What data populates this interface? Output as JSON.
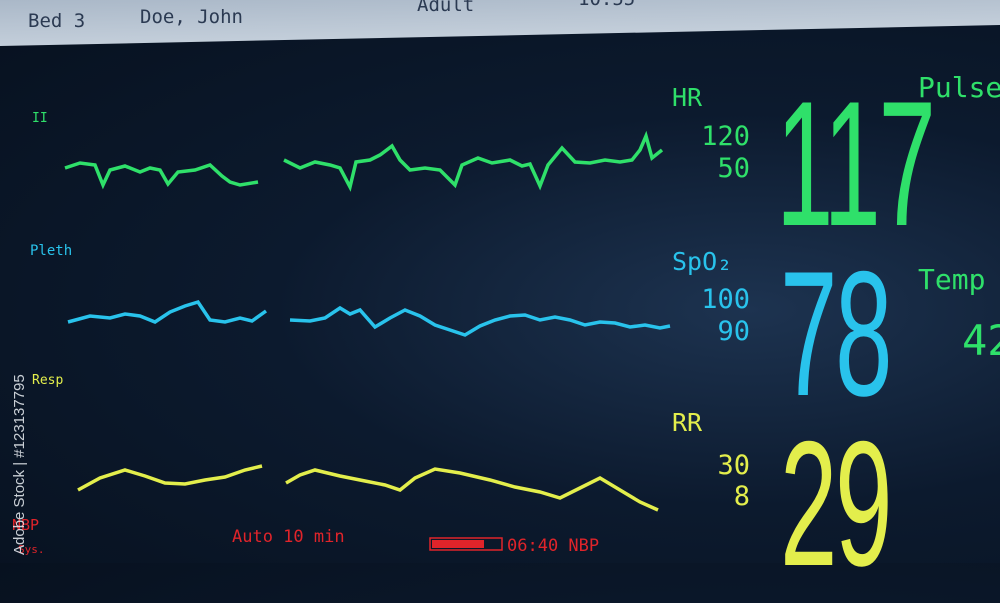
{
  "header": {
    "bed": "Bed 3",
    "patient": "Doe, John",
    "category": "Adult",
    "time": "10:55"
  },
  "waves": {
    "ecg": "II",
    "pleth": "Pleth",
    "resp": "Resp",
    "nbp": "NBP",
    "nbp_sub": "Sys."
  },
  "footer": {
    "mode": "Auto 10 min",
    "timer": "06:40 NBP"
  },
  "params": {
    "hr": {
      "label": "HR",
      "high": "120",
      "low": "50",
      "value": "117"
    },
    "spo2": {
      "label": "SpO₂",
      "high": "100",
      "low": "90",
      "value": "78"
    },
    "rr": {
      "label": "RR",
      "high": "30",
      "low": "8",
      "value": "29"
    },
    "pulse": {
      "label": "Pulse"
    },
    "temp": {
      "label": "Temp",
      "value": "42"
    }
  },
  "watermark": "Adobe Stock | #123137795"
}
